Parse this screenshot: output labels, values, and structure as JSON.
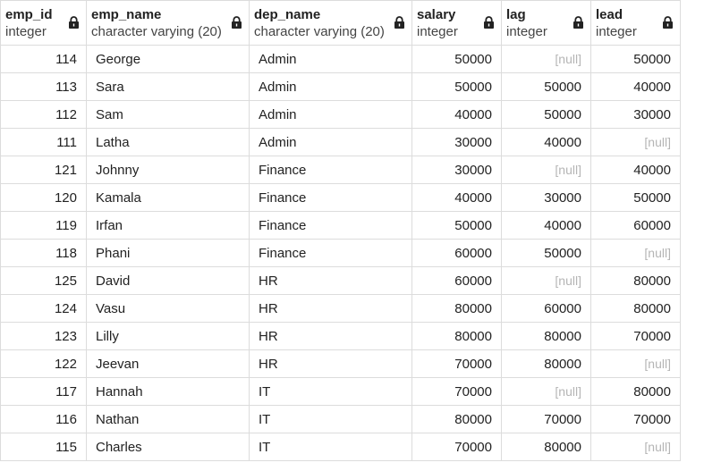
{
  "columns": [
    {
      "name": "emp_id",
      "type": "integer",
      "align": "right",
      "icon": "lock-icon"
    },
    {
      "name": "emp_name",
      "type": "character varying (20)",
      "align": "left",
      "icon": "lock-icon"
    },
    {
      "name": "dep_name",
      "type": "character varying (20)",
      "align": "left",
      "icon": "lock-icon"
    },
    {
      "name": "salary",
      "type": "integer",
      "align": "right",
      "icon": "lock-icon"
    },
    {
      "name": "lag",
      "type": "integer",
      "align": "right",
      "icon": "lock-icon"
    },
    {
      "name": "lead",
      "type": "integer",
      "align": "right",
      "icon": "lock-icon"
    }
  ],
  "null_text": "[null]",
  "colors": {
    "null_text": "#b5b5b5",
    "grid_border": "#dcdcdc",
    "text": "#222222"
  },
  "rows": [
    [
      "114",
      "George",
      "Admin",
      "50000",
      null,
      "50000"
    ],
    [
      "113",
      "Sara",
      "Admin",
      "50000",
      "50000",
      "40000"
    ],
    [
      "112",
      "Sam",
      "Admin",
      "40000",
      "50000",
      "30000"
    ],
    [
      "111",
      "Latha",
      "Admin",
      "30000",
      "40000",
      null
    ],
    [
      "121",
      "Johnny",
      "Finance",
      "30000",
      null,
      "40000"
    ],
    [
      "120",
      "Kamala",
      "Finance",
      "40000",
      "30000",
      "50000"
    ],
    [
      "119",
      "Irfan",
      "Finance",
      "50000",
      "40000",
      "60000"
    ],
    [
      "118",
      "Phani",
      "Finance",
      "60000",
      "50000",
      null
    ],
    [
      "125",
      "David",
      "HR",
      "60000",
      null,
      "80000"
    ],
    [
      "124",
      "Vasu",
      "HR",
      "80000",
      "60000",
      "80000"
    ],
    [
      "123",
      "Lilly",
      "HR",
      "80000",
      "80000",
      "70000"
    ],
    [
      "122",
      "Jeevan",
      "HR",
      "70000",
      "80000",
      null
    ],
    [
      "117",
      "Hannah",
      "IT",
      "70000",
      null,
      "80000"
    ],
    [
      "116",
      "Nathan",
      "IT",
      "80000",
      "70000",
      "70000"
    ],
    [
      "115",
      "Charles",
      "IT",
      "70000",
      "80000",
      null
    ]
  ]
}
